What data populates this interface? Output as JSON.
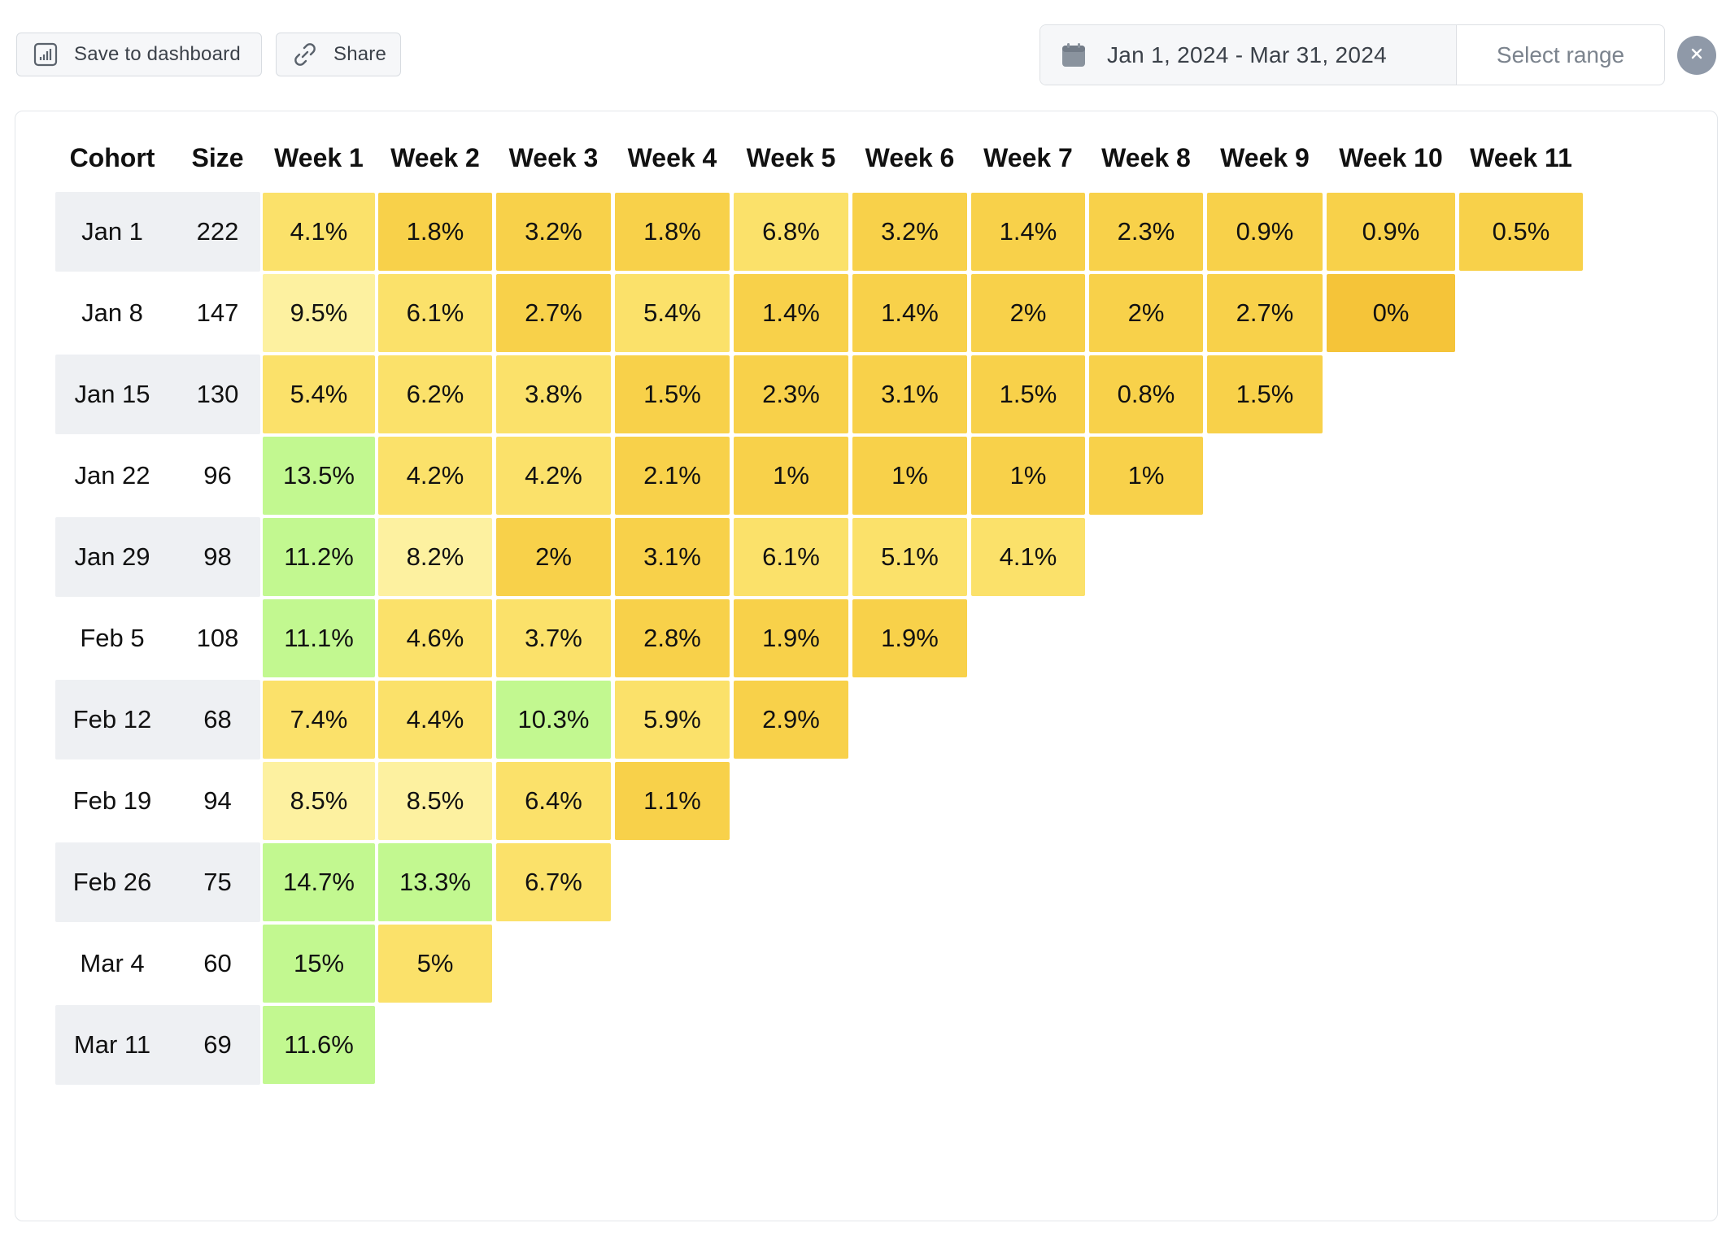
{
  "toolbar": {
    "save_label": "Save to dashboard",
    "share_label": "Share",
    "date_range": "Jan 1, 2024 - Mar 31, 2024",
    "select_range_label": "Select range"
  },
  "icons": {
    "save": "bar-chart-icon",
    "share": "link-icon",
    "calendar": "calendar-icon",
    "clear": "close-icon"
  },
  "colors": {
    "green": "#c2f890",
    "light_yellow": "#fdf1a0",
    "yellow": "#fbe16a",
    "gold": "#f8d14a",
    "dark_gold": "#f5c439"
  },
  "table": {
    "headers": [
      "Cohort",
      "Size",
      "Week 1",
      "Week 2",
      "Week 3",
      "Week 4",
      "Week 5",
      "Week 6",
      "Week 7",
      "Week 8",
      "Week 9",
      "Week 10",
      "Week 11"
    ],
    "rows": [
      {
        "cohort": "Jan 1",
        "size": "222",
        "values": [
          "4.1%",
          "1.8%",
          "3.2%",
          "1.8%",
          "6.8%",
          "3.2%",
          "1.4%",
          "2.3%",
          "0.9%",
          "0.9%",
          "0.5%"
        ]
      },
      {
        "cohort": "Jan 8",
        "size": "147",
        "values": [
          "9.5%",
          "6.1%",
          "2.7%",
          "5.4%",
          "1.4%",
          "1.4%",
          "2%",
          "2%",
          "2.7%",
          "0%"
        ]
      },
      {
        "cohort": "Jan 15",
        "size": "130",
        "values": [
          "5.4%",
          "6.2%",
          "3.8%",
          "1.5%",
          "2.3%",
          "3.1%",
          "1.5%",
          "0.8%",
          "1.5%"
        ]
      },
      {
        "cohort": "Jan 22",
        "size": "96",
        "values": [
          "13.5%",
          "4.2%",
          "4.2%",
          "2.1%",
          "1%",
          "1%",
          "1%",
          "1%"
        ]
      },
      {
        "cohort": "Jan 29",
        "size": "98",
        "values": [
          "11.2%",
          "8.2%",
          "2%",
          "3.1%",
          "6.1%",
          "5.1%",
          "4.1%"
        ]
      },
      {
        "cohort": "Feb 5",
        "size": "108",
        "values": [
          "11.1%",
          "4.6%",
          "3.7%",
          "2.8%",
          "1.9%",
          "1.9%"
        ]
      },
      {
        "cohort": "Feb 12",
        "size": "68",
        "values": [
          "7.4%",
          "4.4%",
          "10.3%",
          "5.9%",
          "2.9%"
        ]
      },
      {
        "cohort": "Feb 19",
        "size": "94",
        "values": [
          "8.5%",
          "8.5%",
          "6.4%",
          "1.1%"
        ]
      },
      {
        "cohort": "Feb 26",
        "size": "75",
        "values": [
          "14.7%",
          "13.3%",
          "6.7%"
        ]
      },
      {
        "cohort": "Mar 4",
        "size": "60",
        "values": [
          "15%",
          "5%"
        ]
      },
      {
        "cohort": "Mar 11",
        "size": "69",
        "values": [
          "11.6%"
        ]
      }
    ]
  }
}
